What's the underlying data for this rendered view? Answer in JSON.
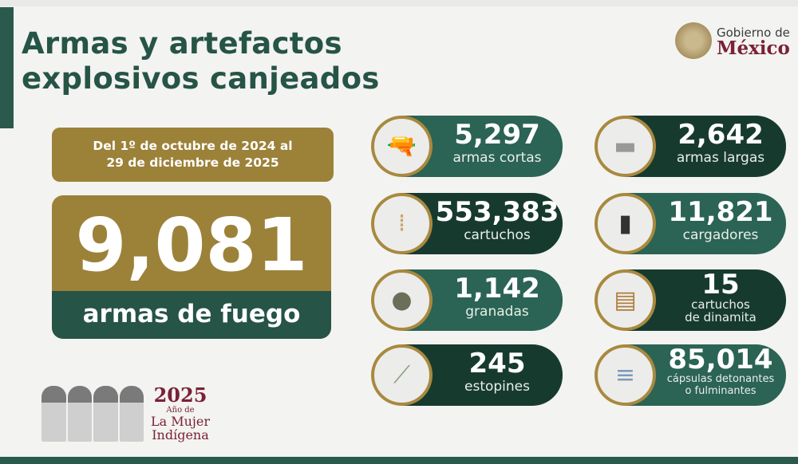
{
  "header": {
    "title_line1": "Armas y artefactos",
    "title_line2": "explosivos canjeados",
    "logo_top": "Gobierno de",
    "logo_bottom": "México"
  },
  "period": {
    "line1": "Del 1º de octubre de 2024 al",
    "line2": "29 de diciembre de 2025"
  },
  "total": {
    "value": "9,081",
    "label": "armas de fuego"
  },
  "items": [
    {
      "value": "5,297",
      "label": "armas cortas",
      "icon": "pistol-icon",
      "style": "light"
    },
    {
      "value": "2,642",
      "label": "armas largas",
      "icon": "rifle-icon",
      "style": "dark"
    },
    {
      "value": "553,383",
      "label": "cartuchos",
      "icon": "bullets-icon",
      "style": "dark"
    },
    {
      "value": "11,821",
      "label": "cargadores",
      "icon": "magazine-icon",
      "style": "light"
    },
    {
      "value": "1,142",
      "label": "granadas",
      "icon": "grenade-icon",
      "style": "light"
    },
    {
      "value": "15",
      "label": "cartuchos",
      "label2": "de dinamita",
      "icon": "dynamite-icon",
      "style": "dark"
    },
    {
      "value": "245",
      "label": "estopines",
      "icon": "fuse-icon",
      "style": "dark"
    },
    {
      "value": "85,014",
      "label": "cápsulas detonantes",
      "label2": "o fulminantes",
      "icon": "detonator-caps-icon",
      "style": "light"
    }
  ],
  "footer": {
    "year": "2025",
    "line1": "Año de",
    "line2": "La Mujer",
    "line3": "Indígena"
  },
  "colors": {
    "green": "#2b6354",
    "dark_green": "#173a2f",
    "gold": "#9c8139",
    "maroon": "#7a2137"
  }
}
